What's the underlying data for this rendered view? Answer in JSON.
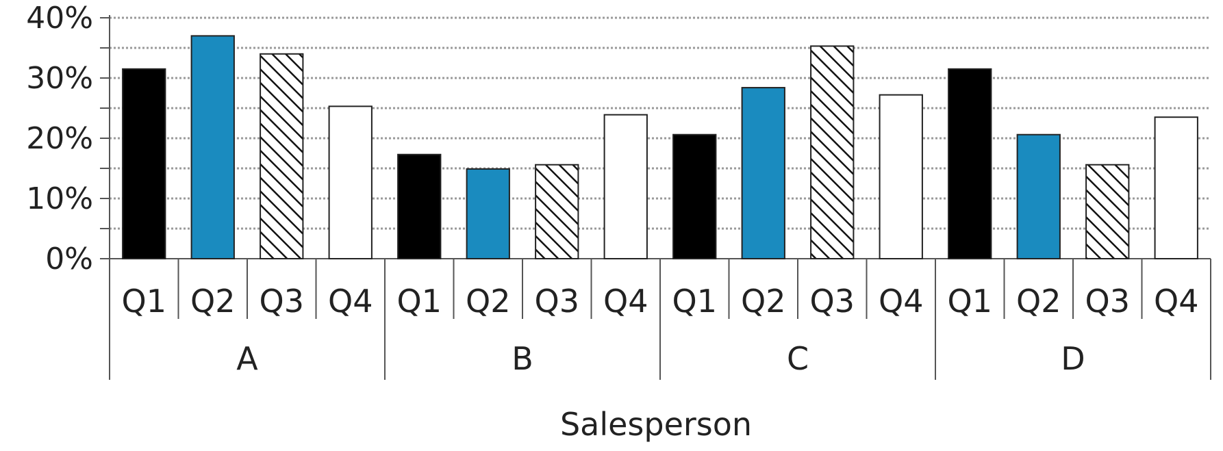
{
  "chart_data": {
    "type": "bar",
    "title": "",
    "xlabel": "Salesperson",
    "ylabel": "",
    "ylim": [
      0,
      40
    ],
    "y_ticks": [
      "0%",
      "10%",
      "20%",
      "30%",
      "40%"
    ],
    "grid": "horizontal dotted",
    "groups": [
      "A",
      "B",
      "C",
      "D"
    ],
    "subcategories": [
      "Q1",
      "Q2",
      "Q3",
      "Q4"
    ],
    "series_styles": [
      {
        "quarter": "Q1",
        "fill": "#000000"
      },
      {
        "quarter": "Q2",
        "fill": "#1a8bbf"
      },
      {
        "quarter": "Q3",
        "fill": "hatched"
      },
      {
        "quarter": "Q4",
        "fill": "#ffffff"
      }
    ],
    "values": {
      "A": [
        31.5,
        37,
        34,
        25.3
      ],
      "B": [
        17.3,
        14.9,
        15.6,
        23.9
      ],
      "C": [
        20.6,
        28.4,
        35.3,
        27.2
      ],
      "D": [
        31.5,
        20.6,
        15.6,
        23.5
      ]
    }
  }
}
